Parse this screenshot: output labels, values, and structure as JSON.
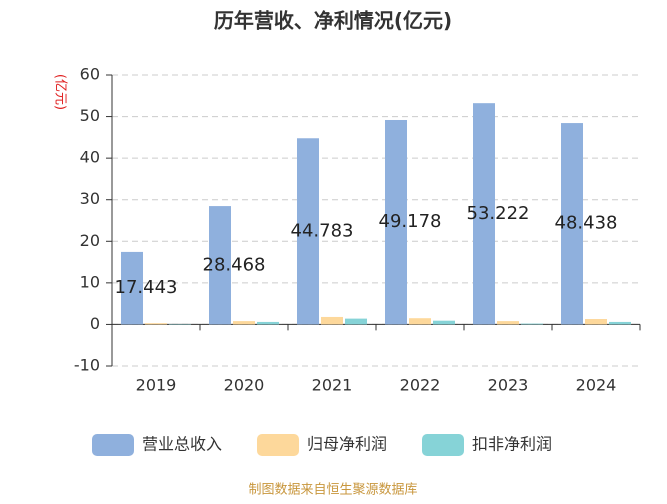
{
  "chart_data": {
    "type": "bar",
    "title": "历年营收、净利情况(亿元)",
    "y_label": "(亿元)",
    "source": "制图数据来自恒生聚源数据库",
    "categories": [
      "2019",
      "2020",
      "2021",
      "2022",
      "2023",
      "2024"
    ],
    "series": [
      {
        "name": "营业总收入",
        "color": "#8fb0dd",
        "values": [
          17.443,
          28.468,
          44.783,
          49.178,
          53.222,
          48.438
        ],
        "labels": true
      },
      {
        "name": "归母净利润",
        "color": "#fdd89b",
        "values": [
          0.3,
          0.8,
          1.8,
          1.5,
          0.8,
          1.3
        ]
      },
      {
        "name": "扣非净利润",
        "color": "#86d3d7",
        "values": [
          0.1,
          0.6,
          1.4,
          0.9,
          0.2,
          0.6
        ]
      }
    ],
    "ylim": [
      -10,
      60
    ],
    "yticks": [
      -10,
      0,
      10,
      20,
      30,
      40,
      50,
      60
    ],
    "grid": true
  }
}
